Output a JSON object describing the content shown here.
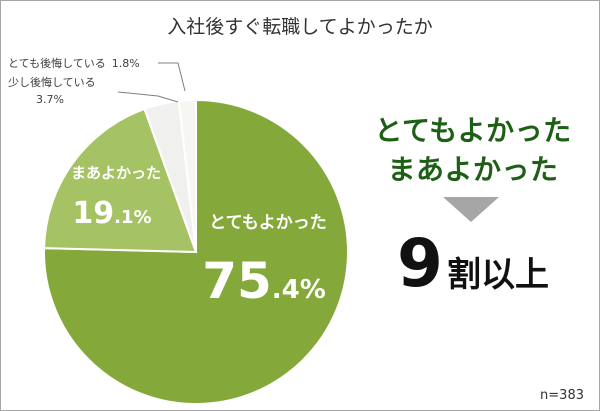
{
  "chart_data": {
    "type": "pie",
    "title": "入社後すぐ転職してよかったか",
    "slices": [
      {
        "label": "とてもよかった",
        "value": 75.4,
        "value_int": "75",
        "value_dec": ".4%",
        "color": "#84a83a"
      },
      {
        "label": "まあよかった",
        "value": 19.1,
        "value_int": "19",
        "value_dec": ".1%",
        "color": "#a5c264"
      },
      {
        "label": "少し後悔している",
        "value": 3.7,
        "value_text": "3.7%",
        "color": "#f0f1ee"
      },
      {
        "label": "とても後悔している",
        "value": 1.8,
        "value_text": "1.8%",
        "color": "#f6f6f3"
      }
    ],
    "start": "top, clockwise",
    "legend": "none"
  },
  "summary": {
    "line1": "とてもよかった",
    "line2": "まあよかった",
    "number": "9",
    "suffix": "割以上"
  },
  "sample_size": "n=383"
}
